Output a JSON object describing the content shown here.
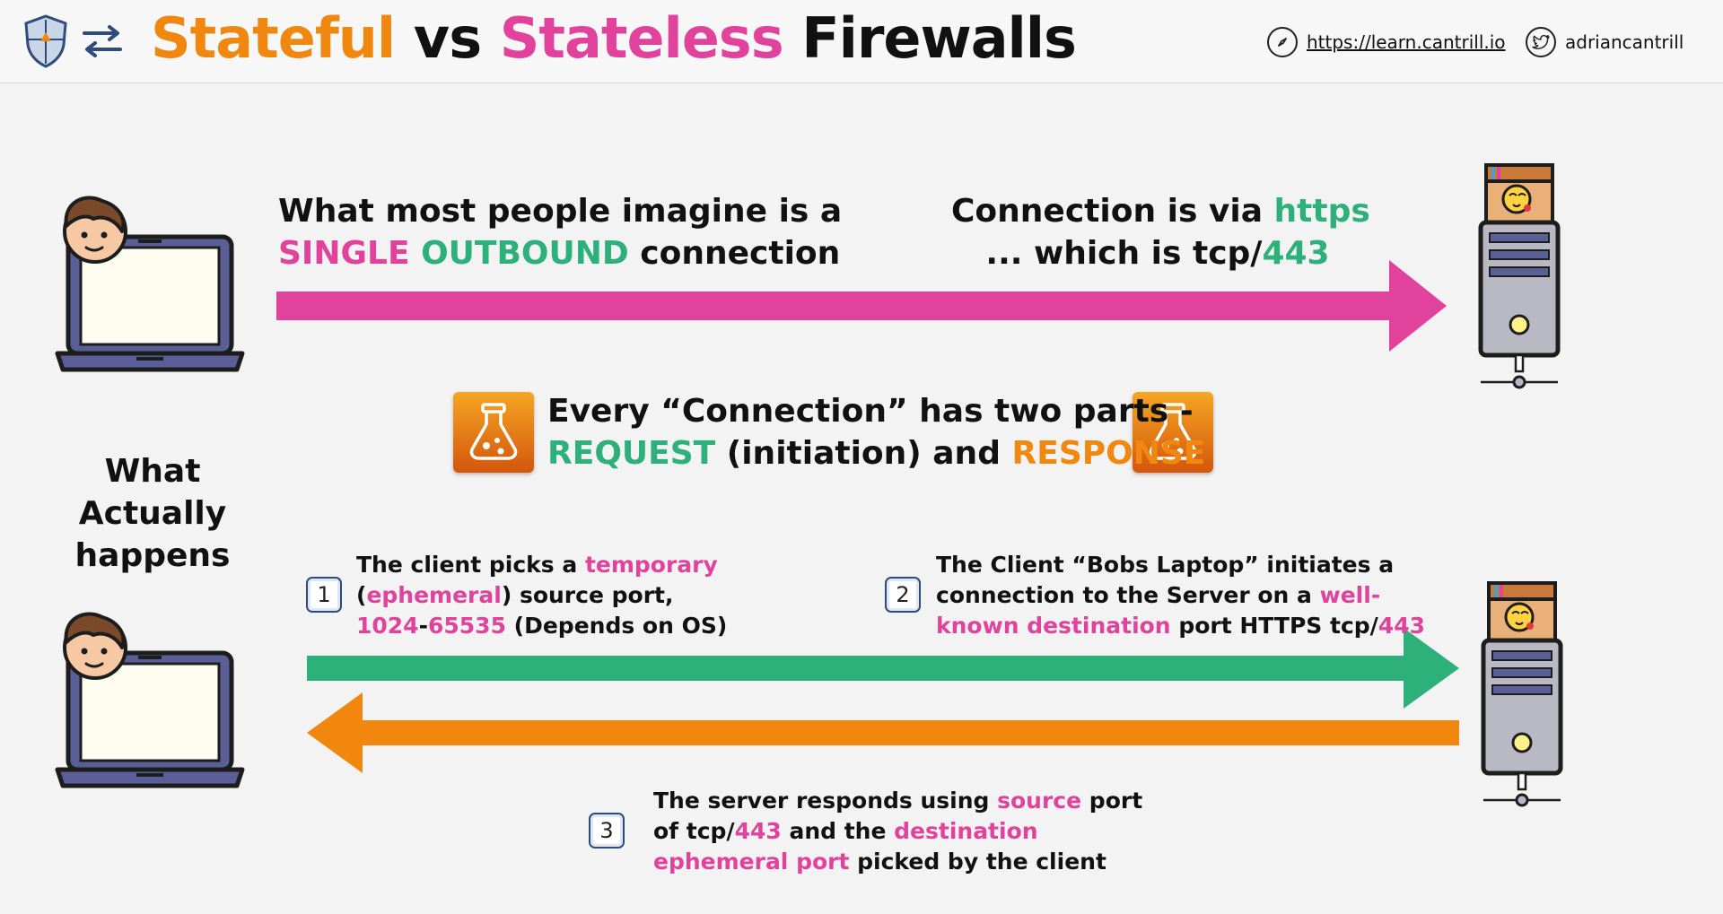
{
  "header": {
    "title_part1": "Stateful",
    "title_part2": " vs ",
    "title_part3": "Stateless",
    "title_part4": " Firewalls",
    "site_link": "https://learn.cantrill.io",
    "twitter_handle": "adriancantrill",
    "logo_icon": "shield-logo-icon",
    "swap_icon": "swap-arrows-icon"
  },
  "top_section": {
    "imagine_line1": "What most people imagine is a",
    "imagine_single": "SINGLE",
    "imagine_outbound": "OUTBOUND",
    "imagine_connection": " connection",
    "via_prefix": "Connection is via ",
    "via_https": "https",
    "which_prefix": "... which is tcp/",
    "which_port": "443"
  },
  "middle_section": {
    "every_line1": "Every “Connection” has two parts -",
    "request": "REQUEST",
    "initiation": " (initiation) and ",
    "response": "RESPONSE",
    "what_actually_line1": "What",
    "what_actually_line2": "Actually",
    "what_actually_line3": "happens"
  },
  "steps": [
    {
      "number": "1",
      "l1a": "The client picks a ",
      "l1b": "temporary",
      "l2a": "(",
      "l2b": "ephemeral",
      "l2c": ") source port,",
      "l3a": "1024",
      "l3b": "-",
      "l3c": "65535",
      "l3d": " (Depends on OS)"
    },
    {
      "number": "2",
      "l1a": "The Client “Bobs Laptop” initiates a",
      "l2a": "connection to the Server on a ",
      "l2b": "well-",
      "l3a": "known destination",
      "l3b": " port HTTPS tcp/",
      "l3c": "443"
    },
    {
      "number": "3",
      "l1a": "The server responds using ",
      "l1b": "source",
      "l1c": " port",
      "l2a": "of tcp/",
      "l2b": "443",
      "l2c": " and the ",
      "l2d": "destination",
      "l3a": "ephemeral port",
      "l3b": " picked by the client"
    }
  ],
  "colors": {
    "orange": "#f0870f",
    "pink": "#e0429c",
    "green": "#2db07a",
    "arrow_pink": "#e0429c",
    "arrow_green": "#2db07a",
    "arrow_orange": "#f2870f"
  },
  "icons": {
    "laptop": "laptop-user-icon",
    "server": "server-icon",
    "flask": "flask-icon"
  }
}
